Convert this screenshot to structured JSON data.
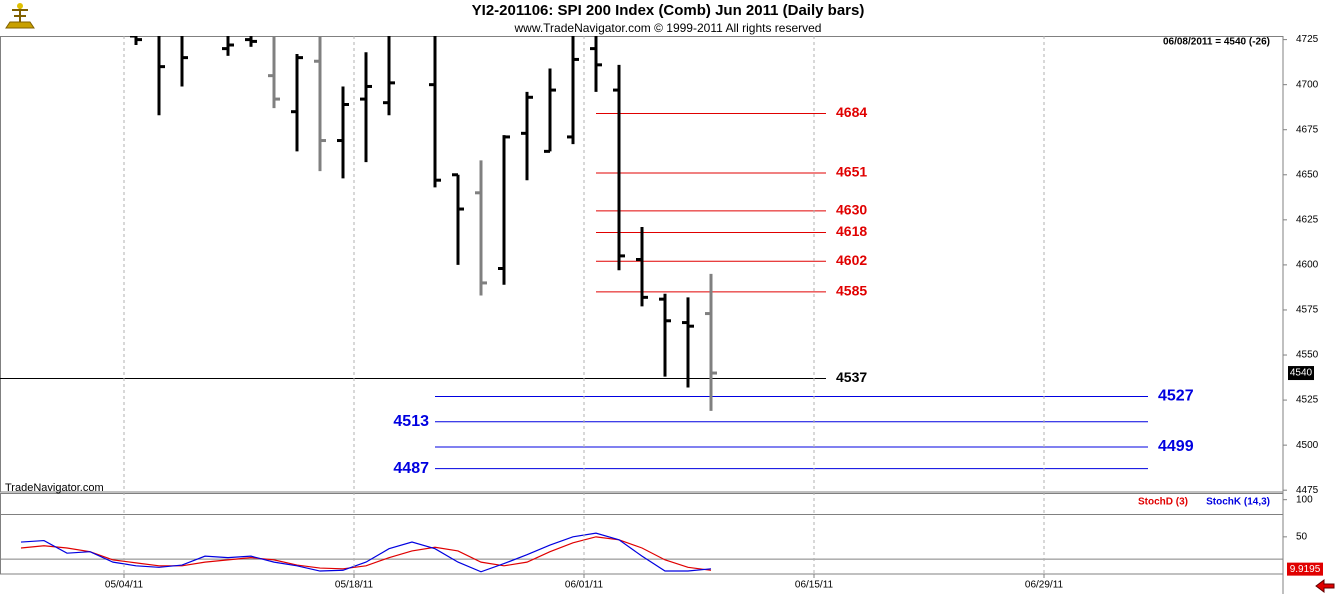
{
  "chart_data": [
    {
      "type": "ohlc",
      "title": "YI2-201106:  SPI 200 Index (Comb) Jun 2011  (Daily bars)",
      "subtitle": "www.TradeNavigator.com © 1999-2011 All rights reserved",
      "header": "06/08/2011 = 4540 (-26)",
      "watermark": "TradeNavigator.com",
      "ylim": [
        4474,
        4727
      ],
      "yticks": [
        4475,
        4500,
        4525,
        4550,
        4575,
        4600,
        4625,
        4650,
        4675,
        4700,
        4725
      ],
      "last": 4540,
      "open": [
        null,
        null,
        null,
        null,
        null,
        4727,
        4728,
        4730,
        null,
        4720,
        4725,
        4705,
        4685,
        4713,
        4669,
        4692,
        4690,
        null,
        4700,
        4650,
        4640,
        4598,
        4673,
        4663,
        4671,
        4720,
        4697,
        4603,
        4581,
        4568,
        4573,
        null,
        null,
        null,
        null,
        null,
        null,
        null,
        null,
        null,
        null,
        null,
        null,
        null,
        null,
        null,
        null,
        null,
        null,
        null,
        null
      ],
      "high": [
        null,
        null,
        null,
        null,
        null,
        4730,
        4740,
        4740,
        null,
        4728,
        4728,
        4730,
        4717,
        4730,
        4699,
        4718,
        4735,
        null,
        4735,
        4650,
        4658,
        4672,
        4696,
        4709,
        4730,
        4735,
        4711,
        4621,
        4584,
        4582,
        4595,
        null,
        null,
        null,
        null,
        null,
        null,
        null,
        null,
        null,
        null,
        null,
        null,
        null,
        null,
        null,
        null,
        null,
        null,
        null,
        null
      ],
      "low": [
        null,
        null,
        null,
        null,
        null,
        4722,
        4683,
        4699,
        null,
        4716,
        4721,
        4687,
        4663,
        4652,
        4648,
        4657,
        4683,
        null,
        4643,
        4600,
        4583,
        4589,
        4647,
        4663,
        4667,
        4696,
        4597,
        4577,
        4538,
        4532,
        4519,
        null,
        null,
        null,
        null,
        null,
        null,
        null,
        null,
        null,
        null,
        null,
        null,
        null,
        null,
        null,
        null,
        null,
        null,
        null,
        null
      ],
      "close": [
        null,
        null,
        null,
        null,
        null,
        4725,
        4710,
        4715,
        null,
        4722,
        4724,
        4692,
        4715,
        4669,
        4689,
        4699,
        4701,
        null,
        4647,
        4631,
        4590,
        4671,
        4693,
        4697,
        4714,
        4711,
        4605,
        4582,
        4569,
        4566,
        4540,
        null,
        null,
        null,
        null,
        null,
        null,
        null,
        null,
        null,
        null,
        null,
        null,
        null,
        null,
        null,
        null,
        null,
        null,
        null,
        null
      ],
      "colors": [
        null,
        null,
        null,
        null,
        null,
        "#000000",
        "#000000",
        "#000000",
        null,
        "#000000",
        "#000000",
        "#808080",
        "#000000",
        "#808080",
        "#000000",
        "#000000",
        "#000000",
        null,
        "#000000",
        "#000000",
        "#808080",
        "#000000",
        "#000000",
        "#000000",
        "#000000",
        "#000000",
        "#000000",
        "#000000",
        "#000000",
        "#000000",
        "#808080",
        null,
        null,
        null,
        null,
        null,
        null,
        null,
        null,
        null,
        null,
        null,
        null,
        null,
        null,
        null,
        null,
        null,
        null,
        null,
        null
      ],
      "levels": [
        {
          "value": 4684,
          "color": "#e00000"
        },
        {
          "value": 4651,
          "color": "#e00000"
        },
        {
          "value": 4630,
          "color": "#e00000"
        },
        {
          "value": 4618,
          "color": "#e00000"
        },
        {
          "value": 4602,
          "color": "#e00000"
        },
        {
          "value": 4585,
          "color": "#e00000"
        },
        {
          "value": 4537,
          "color": "#000000"
        },
        {
          "value": 4527,
          "color": "#0000e0"
        },
        {
          "value": 4513,
          "color": "#0000e0"
        },
        {
          "value": 4499,
          "color": "#0000e0"
        },
        {
          "value": 4487,
          "color": "#0000e0"
        }
      ]
    },
    {
      "type": "line",
      "categories": [
        null,
        null,
        null,
        null,
        null,
        "05/04/11",
        null,
        null,
        null,
        null,
        null,
        null,
        null,
        null,
        null,
        "05/18/11",
        null,
        null,
        null,
        null,
        null,
        null,
        null,
        null,
        null,
        "06/01/11",
        null,
        null,
        null,
        null,
        null,
        null,
        null,
        null,
        null,
        "06/15/11",
        null,
        null,
        null,
        null,
        null,
        null,
        null,
        null,
        null,
        "06/29/11",
        null,
        null,
        null,
        null,
        null
      ],
      "ylim": [
        0,
        109
      ],
      "yticks": [
        50,
        100
      ],
      "levels": [
        80,
        20
      ],
      "last": 9.9195,
      "series": [
        {
          "name": "StochD (3)",
          "color": "#e00000",
          "values": [
            35,
            38,
            35,
            30,
            19,
            15,
            11,
            11,
            16,
            19,
            22,
            19,
            12,
            8,
            7,
            11,
            22,
            31,
            36,
            31,
            16,
            11,
            16,
            30,
            42,
            50,
            46,
            35,
            19,
            9,
            5,
            null,
            null,
            null,
            null,
            null,
            null,
            null,
            null,
            null,
            null,
            null,
            null,
            null,
            null,
            null,
            null,
            null,
            null,
            null,
            null
          ]
        },
        {
          "name": "StochK (14,3)",
          "color": "#0000e0",
          "values": [
            43,
            45,
            28,
            30,
            16,
            11,
            9,
            12,
            24,
            22,
            24,
            16,
            11,
            4,
            5,
            16,
            34,
            43,
            34,
            16,
            3,
            14,
            26,
            39,
            50,
            55,
            46,
            24,
            4,
            4,
            7,
            null,
            null,
            null,
            null,
            null,
            null,
            null,
            null,
            null,
            null,
            null,
            null,
            null,
            null,
            null,
            null,
            null,
            null,
            null,
            null
          ]
        }
      ]
    }
  ]
}
